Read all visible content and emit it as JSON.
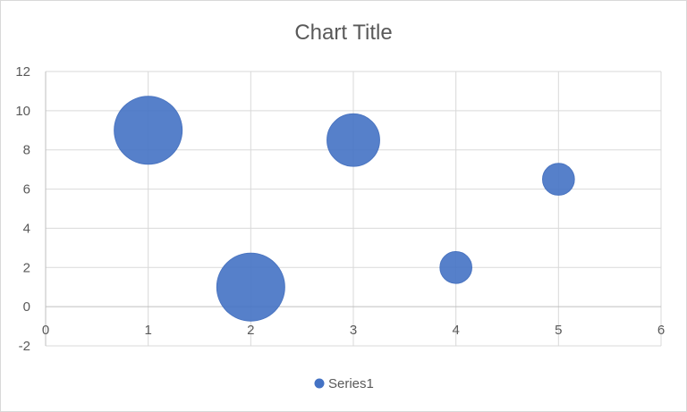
{
  "chart_data": {
    "type": "bubble",
    "title": "Chart Title",
    "xlim": [
      0,
      6
    ],
    "ylim": [
      -2,
      12
    ],
    "x_ticks": [
      0,
      1,
      2,
      3,
      4,
      5,
      6
    ],
    "y_ticks": [
      -2,
      0,
      2,
      4,
      6,
      8,
      10,
      12
    ],
    "grid": true,
    "legend_position": "bottom",
    "series": [
      {
        "name": "Series1",
        "color": "#4472C4",
        "points": [
          {
            "x": 1,
            "y": 9,
            "size": 1.0
          },
          {
            "x": 2,
            "y": 1,
            "size": 1.0
          },
          {
            "x": 3,
            "y": 8.5,
            "size": 0.6
          },
          {
            "x": 4,
            "y": 2,
            "size": 0.22
          },
          {
            "x": 5,
            "y": 6.5,
            "size": 0.22
          }
        ]
      }
    ]
  }
}
